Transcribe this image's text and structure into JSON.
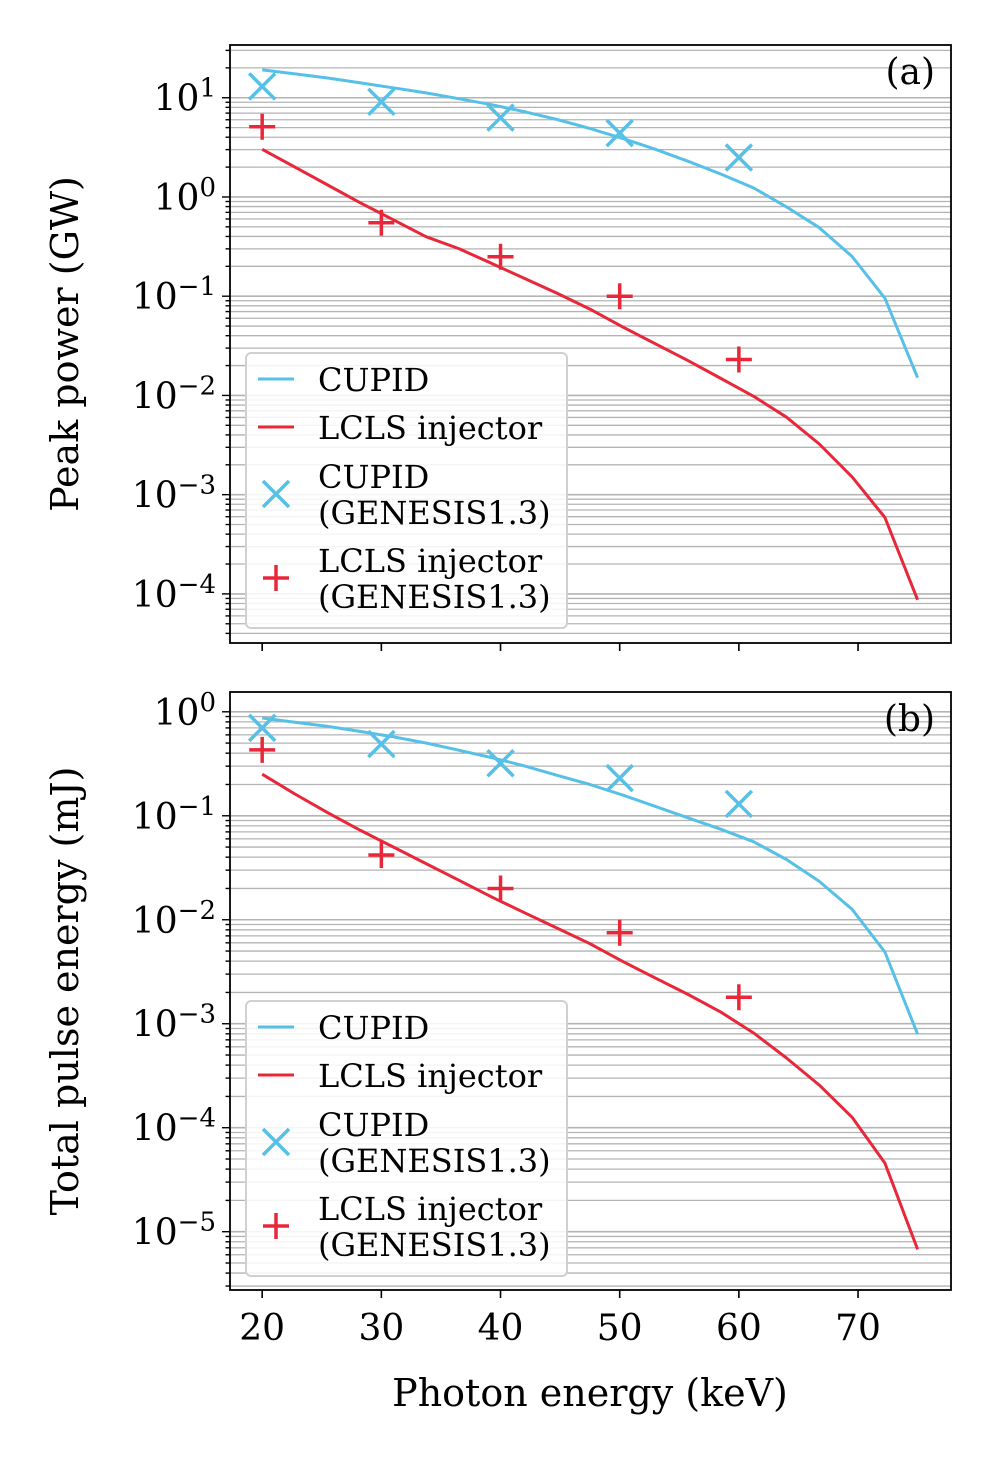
{
  "colors": {
    "cupid": "#57c0e6",
    "lcls": "#e8283a",
    "grid": "#b4b4b4",
    "axis": "#000000"
  },
  "shared_xlabel": "Photon energy (keV)",
  "chart_data": [
    {
      "type": "line",
      "panel_label": "(a)",
      "xlabel": "",
      "ylabel": "Peak power (GW)",
      "xlim": [
        17.3,
        77.8
      ],
      "ylim": [
        3.2e-05,
        34
      ],
      "yscale": "log",
      "grid": "y major and minor",
      "legend_placement": "lower-left",
      "xticks": [
        20,
        30,
        40,
        50,
        60,
        70
      ],
      "xtick_labels": [],
      "yticks": [
        10,
        1,
        0.1,
        0.01,
        0.001,
        0.0001
      ],
      "ytick_labels": [
        "10^1",
        "10^0",
        "10^-1",
        "10^-2",
        "10^-3",
        "10^-4"
      ],
      "series": [
        {
          "name": "CUPID",
          "kind": "line",
          "color": "cupid",
          "x": [
            20,
            22.75,
            25.5,
            28.25,
            31,
            33.75,
            36.5,
            39.25,
            42,
            44.75,
            47.5,
            50.25,
            53,
            55.75,
            58.5,
            61.25,
            64,
            66.75,
            69.5,
            72.25,
            75
          ],
          "y": [
            19.1,
            17.4,
            15.8,
            14.1,
            12.6,
            11.2,
            9.77,
            8.51,
            7.24,
            6.03,
            4.9,
            3.89,
            3.02,
            2.29,
            1.7,
            1.23,
            0.794,
            0.49,
            0.251,
            0.0955,
            0.0151
          ]
        },
        {
          "name": "LCLS injector",
          "kind": "line",
          "color": "lcls",
          "x": [
            20,
            22.75,
            25.5,
            28.25,
            31,
            33.75,
            36.5,
            39.25,
            42,
            44.75,
            47.5,
            50.25,
            53,
            55.75,
            58.5,
            61.25,
            64,
            66.75,
            69.5,
            72.25,
            75
          ],
          "y": [
            3.02,
            2.0,
            1.32,
            0.871,
            0.589,
            0.398,
            0.302,
            0.214,
            0.151,
            0.107,
            0.0741,
            0.049,
            0.0331,
            0.0224,
            0.0148,
            0.00977,
            0.00603,
            0.00324,
            0.00151,
            0.000589,
            8.71e-05
          ]
        },
        {
          "name": "CUPID\n(GENESIS1.3)",
          "kind": "x-marker",
          "color": "cupid",
          "x": [
            20,
            30,
            40,
            50,
            60
          ],
          "y": [
            13,
            9.1,
            6.3,
            4.4,
            2.5
          ]
        },
        {
          "name": "LCLS injector\n(GENESIS1.3)",
          "kind": "plus-marker",
          "color": "lcls",
          "x": [
            20,
            30,
            40,
            50,
            60
          ],
          "y": [
            5.1,
            0.55,
            0.25,
            0.1,
            0.023
          ]
        }
      ]
    },
    {
      "type": "line",
      "panel_label": "(b)",
      "xlabel": "Photon energy (keV)",
      "ylabel": "Total pulse energy (mJ)",
      "xlim": [
        17.3,
        77.8
      ],
      "ylim": [
        2.75e-06,
        1.55
      ],
      "yscale": "log",
      "grid": "y major and minor",
      "legend_placement": "lower-left",
      "xticks": [
        20,
        30,
        40,
        50,
        60,
        70
      ],
      "xtick_labels": [
        "20",
        "30",
        "40",
        "50",
        "60",
        "70"
      ],
      "yticks": [
        1,
        0.1,
        0.01,
        0.001,
        0.0001,
        1e-05
      ],
      "ytick_labels": [
        "10^0",
        "10^-1",
        "10^-2",
        "10^-3",
        "10^-4",
        "10^-5"
      ],
      "series": [
        {
          "name": "CUPID",
          "kind": "line",
          "color": "cupid",
          "x": [
            20,
            22.75,
            25.5,
            28.25,
            31,
            33.75,
            36.5,
            39.25,
            42,
            44.75,
            47.5,
            50.25,
            53,
            55.75,
            58.5,
            61.25,
            64,
            66.75,
            69.5,
            72.25,
            75
          ],
          "y": [
            0.871,
            0.794,
            0.724,
            0.646,
            0.575,
            0.501,
            0.427,
            0.363,
            0.302,
            0.245,
            0.2,
            0.158,
            0.123,
            0.0955,
            0.0741,
            0.0562,
            0.038,
            0.0234,
            0.0126,
            0.0049,
            0.000794
          ]
        },
        {
          "name": "LCLS injector",
          "kind": "line",
          "color": "lcls",
          "x": [
            20,
            22.75,
            25.5,
            28.25,
            31,
            33.75,
            36.5,
            39.25,
            42,
            44.75,
            47.5,
            50.25,
            53,
            55.75,
            58.5,
            61.25,
            64,
            66.75,
            69.5,
            72.25,
            75
          ],
          "y": [
            0.251,
            0.162,
            0.107,
            0.0724,
            0.0501,
            0.0347,
            0.024,
            0.0166,
            0.0117,
            0.00832,
            0.00589,
            0.00398,
            0.00275,
            0.00191,
            0.00129,
            0.000813,
            0.000468,
            0.000257,
            0.000126,
            4.57e-05,
            6.76e-06
          ]
        },
        {
          "name": "CUPID\n(GENESIS1.3)",
          "kind": "x-marker",
          "color": "cupid",
          "x": [
            20,
            30,
            40,
            50,
            60
          ],
          "y": [
            0.7,
            0.49,
            0.32,
            0.23,
            0.13
          ]
        },
        {
          "name": "LCLS injector\n(GENESIS1.3)",
          "kind": "plus-marker",
          "color": "lcls",
          "x": [
            20,
            30,
            40,
            50,
            60
          ],
          "y": [
            0.43,
            0.042,
            0.02,
            0.0075,
            0.0018
          ]
        }
      ]
    }
  ]
}
